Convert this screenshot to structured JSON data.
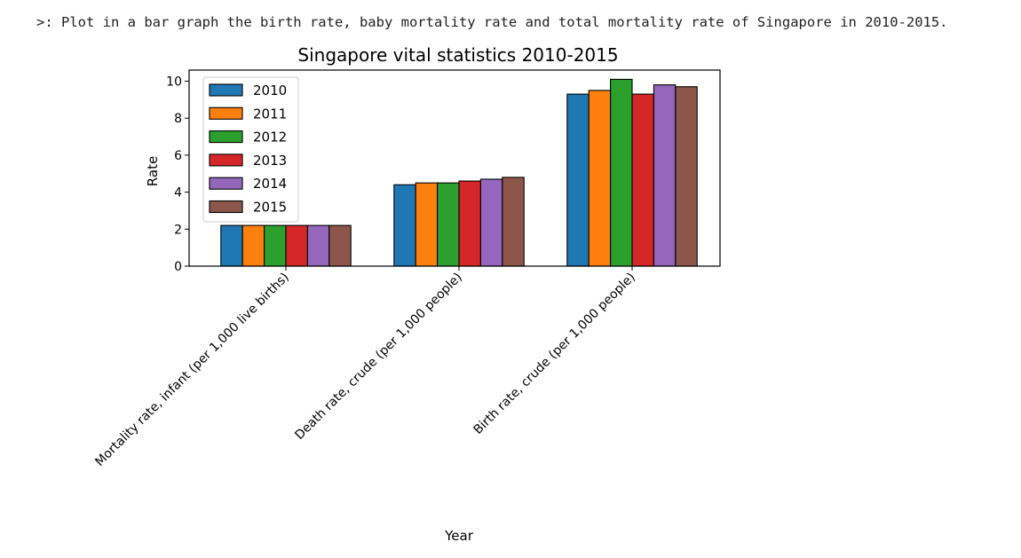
{
  "prompt": {
    "marker": ">:",
    "text": "Plot in a bar graph the birth rate, baby mortality rate and total mortality rate of Singapore in 2010-2015."
  },
  "chart_data": {
    "type": "bar",
    "title": "Singapore vital statistics 2010-2015",
    "xlabel": "Year",
    "ylabel": "Rate",
    "ylim": [
      0,
      10.6
    ],
    "yticks": [
      0,
      2,
      4,
      6,
      8,
      10
    ],
    "grid": false,
    "legend_position": "top-left",
    "bar_edge_color": "#000000",
    "categories": [
      "Mortality rate, infant (per 1,000 live births)",
      "Death rate, crude (per 1,000 people)",
      "Birth rate, crude (per 1,000 people)"
    ],
    "series": [
      {
        "name": "2010",
        "color": "#1f77b4",
        "values": [
          2.2,
          4.4,
          9.3
        ]
      },
      {
        "name": "2011",
        "color": "#ff7f0e",
        "values": [
          2.2,
          4.5,
          9.5
        ]
      },
      {
        "name": "2012",
        "color": "#2ca02c",
        "values": [
          2.2,
          4.5,
          10.1
        ]
      },
      {
        "name": "2013",
        "color": "#d62728",
        "values": [
          2.2,
          4.6,
          9.3
        ]
      },
      {
        "name": "2014",
        "color": "#9467bd",
        "values": [
          2.2,
          4.7,
          9.8
        ]
      },
      {
        "name": "2015",
        "color": "#8c564b",
        "values": [
          2.2,
          4.8,
          9.7
        ]
      }
    ]
  }
}
